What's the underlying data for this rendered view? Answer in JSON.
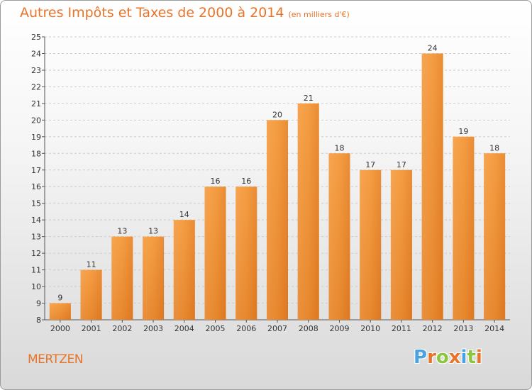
{
  "chart_data": {
    "type": "bar",
    "title": "Autres Impôts et Taxes de 2000 à 2014",
    "subtitle": "(en milliers d'€)",
    "categories": [
      "2000",
      "2001",
      "2002",
      "2003",
      "2004",
      "2005",
      "2006",
      "2007",
      "2008",
      "2009",
      "2010",
      "2011",
      "2012",
      "2013",
      "2014"
    ],
    "values": [
      9,
      11,
      13,
      13,
      14,
      16,
      16,
      20,
      21,
      18,
      17,
      17,
      24,
      19,
      18
    ],
    "ylim": [
      8,
      25
    ],
    "yticks": [
      8,
      9,
      10,
      11,
      12,
      13,
      14,
      15,
      16,
      17,
      18,
      19,
      20,
      21,
      22,
      23,
      24,
      25
    ],
    "grid": true,
    "bar_color": "#f08a2a"
  },
  "footer": {
    "place": "MERTZEN",
    "logo": [
      "P",
      "r",
      "o",
      "x",
      "i",
      "t",
      "i"
    ],
    "logo_colors": [
      "#4aa3df",
      "#e8742a",
      "#8cc63f",
      "#e8742a",
      "#4aa3df",
      "#8cc63f",
      "#e8742a"
    ]
  }
}
